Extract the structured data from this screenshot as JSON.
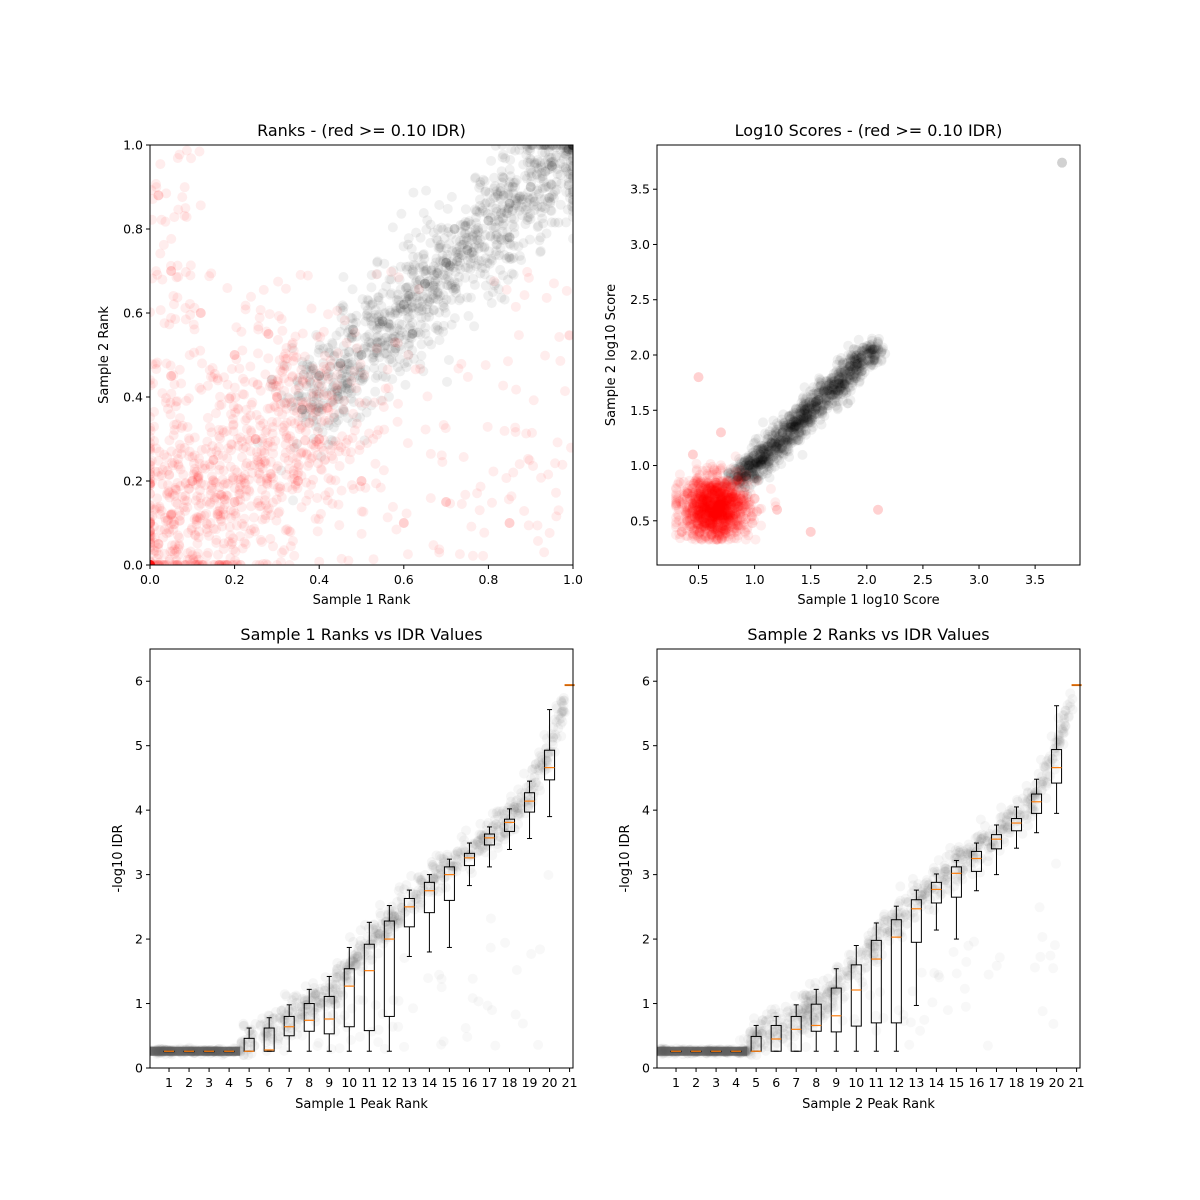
{
  "chart_data": [
    {
      "type": "scatter",
      "title": "Ranks - (red >= 0.10 IDR)",
      "xlabel": "Sample 1 Rank",
      "ylabel": "Sample 2 Rank",
      "xlim": [
        0,
        1
      ],
      "ylim": [
        0,
        1
      ],
      "xticks": [
        "0.0",
        "0.2",
        "0.4",
        "0.6",
        "0.8",
        "1.0"
      ],
      "yticks": [
        "0.0",
        "0.2",
        "0.4",
        "0.6",
        "0.8",
        "1.0"
      ],
      "grid": false,
      "colors": {
        "pass": "#000000",
        "fail": "#ff0000"
      },
      "series": [
        {
          "color": "#000000",
          "points": [
            [
              0.36,
              0.37
            ],
            [
              0.4,
              0.45
            ],
            [
              0.45,
              0.48
            ],
            [
              0.5,
              0.5
            ],
            [
              0.55,
              0.58
            ],
            [
              0.6,
              0.62
            ],
            [
              0.65,
              0.67
            ],
            [
              0.7,
              0.72
            ],
            [
              0.75,
              0.75
            ],
            [
              0.8,
              0.82
            ],
            [
              0.85,
              0.86
            ],
            [
              0.9,
              0.9
            ],
            [
              0.95,
              0.95
            ],
            [
              0.99,
              0.99
            ],
            [
              0.48,
              0.56
            ],
            [
              0.62,
              0.55
            ],
            [
              0.72,
              0.8
            ],
            [
              0.85,
              0.78
            ]
          ]
        },
        {
          "color": "#ff0000",
          "points": [
            [
              0.02,
              0.05
            ],
            [
              0.05,
              0.12
            ],
            [
              0.1,
              0.2
            ],
            [
              0.15,
              0.25
            ],
            [
              0.2,
              0.15
            ],
            [
              0.25,
              0.3
            ],
            [
              0.3,
              0.4
            ],
            [
              0.35,
              0.2
            ],
            [
              0.4,
              0.3
            ],
            [
              0.05,
              0.45
            ],
            [
              0.12,
              0.6
            ],
            [
              0.2,
              0.5
            ],
            [
              0.28,
              0.55
            ],
            [
              0.5,
              0.2
            ],
            [
              0.6,
              0.1
            ],
            [
              0.7,
              0.15
            ],
            [
              0.85,
              0.1
            ],
            [
              0.02,
              0.88
            ],
            [
              0.05,
              0.7
            ]
          ]
        }
      ]
    },
    {
      "type": "scatter",
      "title": "Log10 Scores - (red >= 0.10 IDR)",
      "xlabel": "Sample 1 log10 Score",
      "ylabel": "Sample 2 log10 Score",
      "xlim": [
        0.13,
        3.9
      ],
      "ylim": [
        0.1,
        3.9
      ],
      "xticks": [
        "0.5",
        "1.0",
        "1.5",
        "2.0",
        "2.5",
        "3.0",
        "3.5"
      ],
      "yticks": [
        "0.5",
        "1.0",
        "1.5",
        "2.0",
        "2.5",
        "3.0",
        "3.5"
      ],
      "grid": false,
      "colors": {
        "pass": "#000000",
        "fail": "#ff0000"
      },
      "series": [
        {
          "color": "#000000",
          "points": [
            [
              0.85,
              0.9
            ],
            [
              0.95,
              1.0
            ],
            [
              1.05,
              1.1
            ],
            [
              1.15,
              1.2
            ],
            [
              1.25,
              1.3
            ],
            [
              1.35,
              1.4
            ],
            [
              1.45,
              1.5
            ],
            [
              1.55,
              1.58
            ],
            [
              1.65,
              1.68
            ],
            [
              1.75,
              1.78
            ],
            [
              1.85,
              1.9
            ],
            [
              1.95,
              1.98
            ],
            [
              2.05,
              2.05
            ],
            [
              3.74,
              3.74
            ]
          ]
        },
        {
          "color": "#ff0000",
          "points": [
            [
              0.4,
              0.5
            ],
            [
              0.5,
              0.55
            ],
            [
              0.6,
              0.6
            ],
            [
              0.7,
              0.7
            ],
            [
              0.8,
              0.75
            ],
            [
              0.55,
              0.45
            ],
            [
              0.65,
              0.85
            ],
            [
              0.45,
              1.1
            ],
            [
              0.5,
              1.8
            ],
            [
              0.7,
              1.3
            ],
            [
              1.0,
              0.7
            ],
            [
              1.2,
              0.6
            ],
            [
              1.5,
              0.4
            ],
            [
              2.1,
              0.6
            ],
            [
              0.35,
              0.4
            ]
          ]
        }
      ]
    },
    {
      "type": "box",
      "title": "Sample 1 Ranks vs IDR Values",
      "xlabel": "Sample 1 Peak Rank",
      "ylabel": "-log10 IDR",
      "ylim": [
        0,
        6.5
      ],
      "xticks": [
        "1",
        "2",
        "3",
        "4",
        "5",
        "6",
        "7",
        "8",
        "9",
        "10",
        "11",
        "12",
        "13",
        "14",
        "15",
        "16",
        "17",
        "18",
        "19",
        "20",
        "21"
      ],
      "yticks": [
        "0",
        "1",
        "2",
        "3",
        "4",
        "5",
        "6"
      ],
      "boxes": [
        {
          "pos": 1,
          "min": 0.26,
          "q1": 0.26,
          "median": 0.26,
          "q3": 0.26,
          "max": 0.26
        },
        {
          "pos": 2,
          "min": 0.26,
          "q1": 0.26,
          "median": 0.26,
          "q3": 0.26,
          "max": 0.26
        },
        {
          "pos": 3,
          "min": 0.26,
          "q1": 0.26,
          "median": 0.26,
          "q3": 0.26,
          "max": 0.26
        },
        {
          "pos": 4,
          "min": 0.26,
          "q1": 0.26,
          "median": 0.26,
          "q3": 0.26,
          "max": 0.26
        },
        {
          "pos": 5,
          "min": 0.26,
          "q1": 0.26,
          "median": 0.26,
          "q3": 0.46,
          "max": 0.62
        },
        {
          "pos": 6,
          "min": 0.26,
          "q1": 0.26,
          "median": 0.28,
          "q3": 0.62,
          "max": 0.78
        },
        {
          "pos": 7,
          "min": 0.26,
          "q1": 0.5,
          "median": 0.64,
          "q3": 0.8,
          "max": 0.98
        },
        {
          "pos": 8,
          "min": 0.26,
          "q1": 0.57,
          "median": 0.74,
          "q3": 1.0,
          "max": 1.22
        },
        {
          "pos": 9,
          "min": 0.26,
          "q1": 0.53,
          "median": 0.76,
          "q3": 1.11,
          "max": 1.42
        },
        {
          "pos": 10,
          "min": 0.26,
          "q1": 0.64,
          "median": 1.27,
          "q3": 1.54,
          "max": 1.87
        },
        {
          "pos": 11,
          "min": 0.26,
          "q1": 0.58,
          "median": 1.51,
          "q3": 1.92,
          "max": 2.26
        },
        {
          "pos": 12,
          "min": 0.26,
          "q1": 0.8,
          "median": 2.0,
          "q3": 2.28,
          "max": 2.52
        },
        {
          "pos": 13,
          "min": 1.73,
          "q1": 2.19,
          "median": 2.5,
          "q3": 2.63,
          "max": 2.76
        },
        {
          "pos": 14,
          "min": 1.8,
          "q1": 2.41,
          "median": 2.75,
          "q3": 2.88,
          "max": 3.0
        },
        {
          "pos": 15,
          "min": 1.87,
          "q1": 2.6,
          "median": 3.0,
          "q3": 3.12,
          "max": 3.24
        },
        {
          "pos": 16,
          "min": 2.83,
          "q1": 3.14,
          "median": 3.26,
          "q3": 3.33,
          "max": 3.49
        },
        {
          "pos": 17,
          "min": 3.12,
          "q1": 3.46,
          "median": 3.57,
          "q3": 3.63,
          "max": 3.74
        },
        {
          "pos": 18,
          "min": 3.39,
          "q1": 3.67,
          "median": 3.81,
          "q3": 3.86,
          "max": 4.02
        },
        {
          "pos": 19,
          "min": 3.56,
          "q1": 3.97,
          "median": 4.14,
          "q3": 4.27,
          "max": 4.45
        },
        {
          "pos": 20,
          "min": 3.9,
          "q1": 4.47,
          "median": 4.66,
          "q3": 4.93,
          "max": 5.56
        },
        {
          "pos": 21,
          "min": 5.94,
          "q1": 5.94,
          "median": 5.94,
          "q3": 5.94,
          "max": 5.94
        }
      ]
    },
    {
      "type": "box",
      "title": "Sample 2 Ranks vs IDR Values",
      "xlabel": "Sample 2 Peak Rank",
      "ylabel": "-log10 IDR",
      "ylim": [
        0,
        6.5
      ],
      "xticks": [
        "1",
        "2",
        "3",
        "4",
        "5",
        "6",
        "7",
        "8",
        "9",
        "10",
        "11",
        "12",
        "13",
        "14",
        "15",
        "16",
        "17",
        "18",
        "19",
        "20",
        "21"
      ],
      "yticks": [
        "0",
        "1",
        "2",
        "3",
        "4",
        "5",
        "6"
      ],
      "boxes": [
        {
          "pos": 1,
          "min": 0.26,
          "q1": 0.26,
          "median": 0.26,
          "q3": 0.26,
          "max": 0.26
        },
        {
          "pos": 2,
          "min": 0.26,
          "q1": 0.26,
          "median": 0.26,
          "q3": 0.26,
          "max": 0.26
        },
        {
          "pos": 3,
          "min": 0.26,
          "q1": 0.26,
          "median": 0.26,
          "q3": 0.26,
          "max": 0.26
        },
        {
          "pos": 4,
          "min": 0.26,
          "q1": 0.26,
          "median": 0.26,
          "q3": 0.26,
          "max": 0.26
        },
        {
          "pos": 5,
          "min": 0.26,
          "q1": 0.26,
          "median": 0.26,
          "q3": 0.49,
          "max": 0.66
        },
        {
          "pos": 6,
          "min": 0.26,
          "q1": 0.26,
          "median": 0.45,
          "q3": 0.66,
          "max": 0.8
        },
        {
          "pos": 7,
          "min": 0.26,
          "q1": 0.26,
          "median": 0.6,
          "q3": 0.8,
          "max": 0.98
        },
        {
          "pos": 8,
          "min": 0.26,
          "q1": 0.57,
          "median": 0.66,
          "q3": 0.99,
          "max": 1.22
        },
        {
          "pos": 9,
          "min": 0.26,
          "q1": 0.56,
          "median": 0.81,
          "q3": 1.24,
          "max": 1.54
        },
        {
          "pos": 10,
          "min": 0.26,
          "q1": 0.65,
          "median": 1.21,
          "q3": 1.6,
          "max": 1.9
        },
        {
          "pos": 11,
          "min": 0.26,
          "q1": 0.7,
          "median": 1.69,
          "q3": 1.98,
          "max": 2.25
        },
        {
          "pos": 12,
          "min": 0.26,
          "q1": 0.7,
          "median": 2.03,
          "q3": 2.3,
          "max": 2.51
        },
        {
          "pos": 13,
          "min": 0.97,
          "q1": 1.95,
          "median": 2.47,
          "q3": 2.61,
          "max": 2.76
        },
        {
          "pos": 14,
          "min": 2.14,
          "q1": 2.56,
          "median": 2.77,
          "q3": 2.88,
          "max": 3.01
        },
        {
          "pos": 15,
          "min": 2.0,
          "q1": 2.65,
          "median": 3.02,
          "q3": 3.12,
          "max": 3.22
        },
        {
          "pos": 16,
          "min": 2.75,
          "q1": 3.05,
          "median": 3.25,
          "q3": 3.36,
          "max": 3.49
        },
        {
          "pos": 17,
          "min": 3.0,
          "q1": 3.4,
          "median": 3.55,
          "q3": 3.62,
          "max": 3.77
        },
        {
          "pos": 18,
          "min": 3.41,
          "q1": 3.68,
          "median": 3.8,
          "q3": 3.87,
          "max": 4.05
        },
        {
          "pos": 19,
          "min": 3.65,
          "q1": 3.95,
          "median": 4.13,
          "q3": 4.25,
          "max": 4.48
        },
        {
          "pos": 20,
          "min": 3.95,
          "q1": 4.42,
          "median": 4.66,
          "q3": 4.94,
          "max": 5.62
        },
        {
          "pos": 21,
          "min": 5.94,
          "q1": 5.94,
          "median": 5.94,
          "q3": 5.94,
          "max": 5.94
        }
      ]
    }
  ]
}
